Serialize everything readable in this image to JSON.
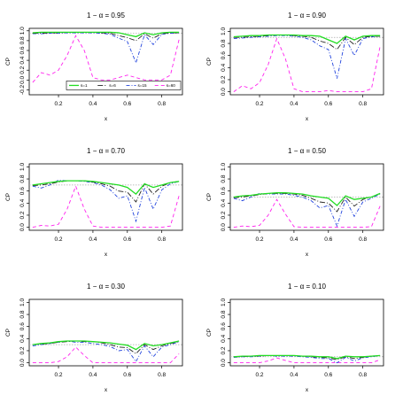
{
  "colors": {
    "series": [
      "#22dd22",
      "#222222",
      "#2244dd",
      "#ff22ee"
    ],
    "reference": "#aaaaaa",
    "axis": "#000000"
  },
  "chart_data": [
    {
      "type": "line",
      "title": "1 − α = 0.95",
      "xlabel": "x",
      "ylabel": "CP",
      "xlim": [
        0.03,
        0.92
      ],
      "ylim": [
        -0.3,
        1.05
      ],
      "xticks": [
        0.2,
        0.4,
        0.6,
        0.8
      ],
      "yticks": [
        -0.2,
        0.0,
        0.2,
        0.4,
        0.6,
        0.8,
        1.0
      ],
      "ytick_labels": [
        "-0.2",
        "0.0",
        "0.2",
        "0.4",
        "0.6",
        "0.8",
        "1.0"
      ],
      "reference": 0.95,
      "legend": {
        "entries": [
          "s=1",
          "s=6",
          "s=15",
          "s=60"
        ],
        "position": "bottom-right"
      },
      "x": [
        0.05,
        0.1,
        0.15,
        0.2,
        0.25,
        0.3,
        0.35,
        0.4,
        0.45,
        0.5,
        0.55,
        0.6,
        0.65,
        0.7,
        0.75,
        0.8,
        0.85,
        0.9
      ],
      "series": [
        {
          "name": "s=1",
          "values": [
            0.96,
            0.97,
            0.97,
            0.97,
            0.97,
            0.97,
            0.97,
            0.97,
            0.97,
            0.97,
            0.96,
            0.92,
            0.88,
            0.96,
            0.92,
            0.96,
            0.97,
            0.97
          ]
        },
        {
          "name": "s=6",
          "values": [
            0.95,
            0.95,
            0.96,
            0.96,
            0.97,
            0.97,
            0.97,
            0.97,
            0.96,
            0.95,
            0.9,
            0.86,
            0.8,
            0.94,
            0.85,
            0.94,
            0.96,
            0.96
          ]
        },
        {
          "name": "s=15",
          "values": [
            0.94,
            0.94,
            0.95,
            0.95,
            0.96,
            0.96,
            0.96,
            0.96,
            0.95,
            0.93,
            0.85,
            0.78,
            0.35,
            0.92,
            0.72,
            0.93,
            0.95,
            0.96
          ]
        },
        {
          "name": "s=60",
          "values": [
            -0.05,
            0.15,
            0.1,
            0.2,
            0.5,
            0.9,
            0.6,
            0.05,
            0.0,
            0.0,
            0.05,
            0.1,
            0.05,
            0.0,
            0.0,
            0.0,
            0.1,
            0.82
          ]
        }
      ]
    },
    {
      "type": "line",
      "title": "1 − α = 0.90",
      "xlabel": "x",
      "ylabel": "CP",
      "xlim": [
        0.03,
        0.92
      ],
      "ylim": [
        -0.05,
        1.05
      ],
      "xticks": [
        0.2,
        0.4,
        0.6,
        0.8
      ],
      "yticks": [
        0.0,
        0.2,
        0.4,
        0.6,
        0.8,
        1.0
      ],
      "ytick_labels": [
        "0.0",
        "0.2",
        "0.4",
        "0.6",
        "0.8",
        "1.0"
      ],
      "reference": 0.9,
      "x": [
        0.05,
        0.1,
        0.15,
        0.2,
        0.25,
        0.3,
        0.35,
        0.4,
        0.45,
        0.5,
        0.55,
        0.6,
        0.65,
        0.7,
        0.75,
        0.8,
        0.85,
        0.9
      ],
      "series": [
        {
          "name": "s=1",
          "values": [
            0.91,
            0.92,
            0.93,
            0.93,
            0.94,
            0.94,
            0.94,
            0.94,
            0.93,
            0.93,
            0.92,
            0.86,
            0.8,
            0.92,
            0.86,
            0.92,
            0.93,
            0.93
          ]
        },
        {
          "name": "s=6",
          "values": [
            0.9,
            0.9,
            0.91,
            0.92,
            0.93,
            0.94,
            0.94,
            0.93,
            0.92,
            0.9,
            0.84,
            0.8,
            0.7,
            0.9,
            0.78,
            0.9,
            0.92,
            0.92
          ]
        },
        {
          "name": "s=15",
          "values": [
            0.88,
            0.89,
            0.9,
            0.91,
            0.92,
            0.93,
            0.93,
            0.92,
            0.9,
            0.86,
            0.76,
            0.7,
            0.22,
            0.88,
            0.6,
            0.88,
            0.91,
            0.92
          ]
        },
        {
          "name": "s=60",
          "values": [
            0.0,
            0.1,
            0.05,
            0.15,
            0.45,
            0.88,
            0.55,
            0.05,
            0.0,
            0.0,
            0.0,
            0.02,
            0.0,
            0.0,
            0.0,
            0.0,
            0.05,
            0.75
          ]
        }
      ]
    },
    {
      "type": "line",
      "title": "1 − α = 0.70",
      "xlabel": "x",
      "ylabel": "CP",
      "xlim": [
        0.03,
        0.92
      ],
      "ylim": [
        -0.05,
        1.05
      ],
      "xticks": [
        0.2,
        0.4,
        0.6,
        0.8
      ],
      "yticks": [
        0.0,
        0.2,
        0.4,
        0.6,
        0.8,
        1.0
      ],
      "ytick_labels": [
        "0.0",
        "0.2",
        "0.4",
        "0.6",
        "0.8",
        "1.0"
      ],
      "reference": 0.7,
      "x": [
        0.05,
        0.1,
        0.15,
        0.2,
        0.25,
        0.3,
        0.35,
        0.4,
        0.45,
        0.5,
        0.55,
        0.6,
        0.65,
        0.7,
        0.75,
        0.8,
        0.85,
        0.9
      ],
      "series": [
        {
          "name": "s=1",
          "values": [
            0.7,
            0.72,
            0.74,
            0.76,
            0.77,
            0.77,
            0.77,
            0.76,
            0.74,
            0.72,
            0.7,
            0.66,
            0.55,
            0.72,
            0.66,
            0.7,
            0.74,
            0.76
          ]
        },
        {
          "name": "s=6",
          "values": [
            0.69,
            0.7,
            0.72,
            0.75,
            0.77,
            0.77,
            0.77,
            0.75,
            0.72,
            0.68,
            0.6,
            0.58,
            0.42,
            0.72,
            0.55,
            0.68,
            0.74,
            0.76
          ]
        },
        {
          "name": "s=15",
          "values": [
            0.68,
            0.65,
            0.7,
            0.78,
            0.77,
            0.77,
            0.76,
            0.74,
            0.7,
            0.62,
            0.48,
            0.52,
            0.1,
            0.66,
            0.3,
            0.62,
            0.72,
            0.76
          ]
        },
        {
          "name": "s=60",
          "values": [
            0.0,
            0.03,
            0.02,
            0.05,
            0.3,
            0.68,
            0.3,
            0.02,
            0.0,
            0.0,
            0.0,
            0.0,
            0.0,
            0.0,
            0.0,
            0.0,
            0.02,
            0.52
          ]
        }
      ]
    },
    {
      "type": "line",
      "title": "1 − α = 0.50",
      "xlabel": "x",
      "ylabel": "CP",
      "xlim": [
        0.03,
        0.92
      ],
      "ylim": [
        -0.05,
        1.05
      ],
      "xticks": [
        0.2,
        0.4,
        0.6,
        0.8
      ],
      "yticks": [
        0.0,
        0.2,
        0.4,
        0.6,
        0.8,
        1.0
      ],
      "ytick_labels": [
        "0.0",
        "0.2",
        "0.4",
        "0.6",
        "0.8",
        "1.0"
      ],
      "reference": 0.5,
      "x": [
        0.05,
        0.1,
        0.15,
        0.2,
        0.25,
        0.3,
        0.35,
        0.4,
        0.45,
        0.5,
        0.55,
        0.6,
        0.65,
        0.7,
        0.75,
        0.8,
        0.85,
        0.9
      ],
      "series": [
        {
          "name": "s=1",
          "values": [
            0.5,
            0.52,
            0.53,
            0.55,
            0.56,
            0.57,
            0.57,
            0.56,
            0.55,
            0.52,
            0.5,
            0.48,
            0.36,
            0.52,
            0.46,
            0.48,
            0.5,
            0.56
          ]
        },
        {
          "name": "s=6",
          "values": [
            0.49,
            0.5,
            0.52,
            0.54,
            0.56,
            0.56,
            0.56,
            0.55,
            0.53,
            0.48,
            0.42,
            0.4,
            0.26,
            0.5,
            0.35,
            0.46,
            0.5,
            0.56
          ]
        },
        {
          "name": "s=15",
          "values": [
            0.48,
            0.44,
            0.5,
            0.56,
            0.55,
            0.55,
            0.55,
            0.53,
            0.5,
            0.44,
            0.32,
            0.36,
            0.02,
            0.46,
            0.18,
            0.42,
            0.48,
            0.55
          ]
        },
        {
          "name": "s=60",
          "values": [
            0.0,
            0.02,
            0.01,
            0.03,
            0.2,
            0.46,
            0.22,
            0.01,
            0.0,
            0.0,
            0.0,
            0.0,
            0.0,
            0.0,
            0.0,
            0.0,
            0.01,
            0.35
          ]
        }
      ]
    },
    {
      "type": "line",
      "title": "1 − α = 0.30",
      "xlabel": "x",
      "ylabel": "CP",
      "xlim": [
        0.03,
        0.92
      ],
      "ylim": [
        -0.05,
        1.05
      ],
      "xticks": [
        0.2,
        0.4,
        0.6,
        0.8
      ],
      "yticks": [
        0.0,
        0.2,
        0.4,
        0.6,
        0.8,
        1.0
      ],
      "ytick_labels": [
        "0.0",
        "0.2",
        "0.4",
        "0.6",
        "0.8",
        "1.0"
      ],
      "reference": 0.3,
      "x": [
        0.05,
        0.1,
        0.15,
        0.2,
        0.25,
        0.3,
        0.35,
        0.4,
        0.45,
        0.5,
        0.55,
        0.6,
        0.65,
        0.7,
        0.75,
        0.8,
        0.85,
        0.9
      ],
      "series": [
        {
          "name": "s=1",
          "values": [
            0.3,
            0.32,
            0.33,
            0.35,
            0.36,
            0.36,
            0.36,
            0.35,
            0.34,
            0.33,
            0.31,
            0.29,
            0.22,
            0.32,
            0.28,
            0.3,
            0.33,
            0.36
          ]
        },
        {
          "name": "s=6",
          "values": [
            0.3,
            0.31,
            0.32,
            0.34,
            0.35,
            0.36,
            0.35,
            0.35,
            0.33,
            0.3,
            0.26,
            0.25,
            0.15,
            0.3,
            0.22,
            0.28,
            0.32,
            0.35
          ]
        },
        {
          "name": "s=15",
          "values": [
            0.28,
            0.3,
            0.32,
            0.34,
            0.36,
            0.34,
            0.34,
            0.32,
            0.3,
            0.27,
            0.2,
            0.22,
            0.02,
            0.28,
            0.1,
            0.26,
            0.3,
            0.35
          ]
        },
        {
          "name": "s=60",
          "values": [
            0.0,
            0.0,
            0.0,
            0.02,
            0.1,
            0.26,
            0.12,
            0.0,
            0.0,
            0.0,
            0.0,
            0.0,
            0.0,
            0.0,
            0.0,
            0.0,
            0.0,
            0.15
          ]
        }
      ]
    },
    {
      "type": "line",
      "title": "1 − α = 0.10",
      "xlabel": "x",
      "ylabel": "CP",
      "xlim": [
        0.03,
        0.92
      ],
      "ylim": [
        -0.05,
        1.05
      ],
      "xticks": [
        0.2,
        0.4,
        0.6,
        0.8
      ],
      "yticks": [
        0.0,
        0.2,
        0.4,
        0.6,
        0.8,
        1.0
      ],
      "ytick_labels": [
        "0.0",
        "0.2",
        "0.4",
        "0.6",
        "0.8",
        "1.0"
      ],
      "reference": 0.1,
      "x": [
        0.05,
        0.1,
        0.15,
        0.2,
        0.25,
        0.3,
        0.35,
        0.4,
        0.45,
        0.5,
        0.55,
        0.6,
        0.65,
        0.7,
        0.75,
        0.8,
        0.85,
        0.9
      ],
      "series": [
        {
          "name": "s=1",
          "values": [
            0.1,
            0.11,
            0.11,
            0.12,
            0.12,
            0.12,
            0.12,
            0.12,
            0.11,
            0.11,
            0.1,
            0.1,
            0.07,
            0.11,
            0.1,
            0.1,
            0.11,
            0.12
          ]
        },
        {
          "name": "s=6",
          "values": [
            0.1,
            0.1,
            0.11,
            0.11,
            0.12,
            0.12,
            0.12,
            0.12,
            0.11,
            0.1,
            0.09,
            0.08,
            0.05,
            0.1,
            0.07,
            0.09,
            0.11,
            0.12
          ]
        },
        {
          "name": "s=15",
          "values": [
            0.09,
            0.1,
            0.1,
            0.11,
            0.12,
            0.11,
            0.11,
            0.11,
            0.1,
            0.09,
            0.07,
            0.07,
            0.0,
            0.09,
            0.03,
            0.08,
            0.1,
            0.12
          ]
        },
        {
          "name": "s=60",
          "values": [
            0.0,
            0.0,
            0.0,
            0.0,
            0.03,
            0.08,
            0.04,
            0.0,
            0.0,
            0.0,
            0.0,
            0.0,
            0.0,
            0.0,
            0.0,
            0.0,
            0.0,
            0.05
          ]
        }
      ]
    }
  ]
}
